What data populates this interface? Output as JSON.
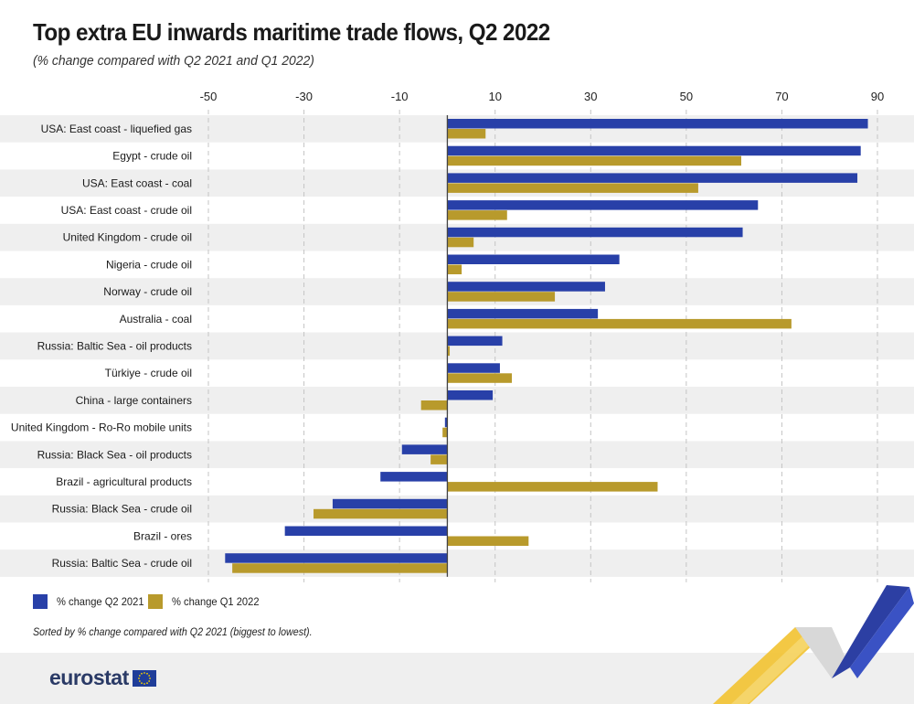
{
  "header": {
    "title": "Top extra EU inwards maritime trade flows, Q2 2022",
    "subtitle": "(% change compared with Q2 2021 and Q1 2022)"
  },
  "chart_data": {
    "type": "bar",
    "orientation": "horizontal",
    "title": "Top extra EU inwards maritime trade flows, Q2 2022",
    "subtitle": "(% change compared with Q2 2021 and Q1 2022)",
    "xlabel": "",
    "ylabel": "",
    "xlim": [
      -50,
      90
    ],
    "xticks": [
      -50,
      -30,
      -10,
      10,
      30,
      50,
      70,
      90
    ],
    "xtick_labels": [
      "-50",
      "-30",
      "-10",
      "10",
      "30",
      "50",
      "70",
      "90"
    ],
    "x_axis_position": "top",
    "grid": "vertical dashed",
    "legend_position": "bottom-left",
    "categories": [
      "USA: East coast - liquefied gas",
      "Egypt - crude oil",
      "USA: East coast - coal",
      "USA: East coast - crude oil",
      "United Kingdom - crude oil",
      "Nigeria - crude oil",
      "Norway - crude oil",
      "Australia - coal",
      "Russia: Baltic Sea - oil products",
      "Türkiye - crude oil",
      "China - large containers",
      "United Kingdom - Ro-Ro mobile units",
      "Russia: Black Sea - oil products",
      "Brazil - agricultural products",
      "Russia: Black Sea - crude oil",
      "Brazil - ores",
      "Russia: Baltic Sea - crude oil"
    ],
    "series": [
      {
        "name": "% change Q2 2021",
        "color": "#2840a8",
        "values": [
          88,
          86.5,
          85.8,
          65,
          61.8,
          36,
          33,
          31.5,
          11.5,
          11,
          9.5,
          -0.5,
          -9.5,
          -14,
          -24,
          -34,
          -46.5
        ]
      },
      {
        "name": "% change Q1 2022",
        "color": "#b89a2c",
        "values": [
          8,
          61.5,
          52.5,
          12.5,
          5.5,
          3,
          22.5,
          72,
          0.5,
          13.5,
          -5.5,
          -1,
          -3.5,
          44,
          -28,
          17,
          -45
        ]
      }
    ]
  },
  "legend": {
    "q2_2021_label": "% change Q2 2021",
    "q1_2022_label": "% change Q1 2022",
    "q2_2021_color": "#2840a8",
    "q1_2022_color": "#b89a2c"
  },
  "footnote": "Sorted by % change compared with Q2 2021 (biggest to lowest).",
  "brand": {
    "name": "eurostat"
  },
  "colors": {
    "stripe": "#efefef",
    "grid": "#c4c4c4",
    "zero_line": "#444444",
    "accent_blue": "#2c3fa3",
    "accent_yellow": "#f2c230"
  }
}
